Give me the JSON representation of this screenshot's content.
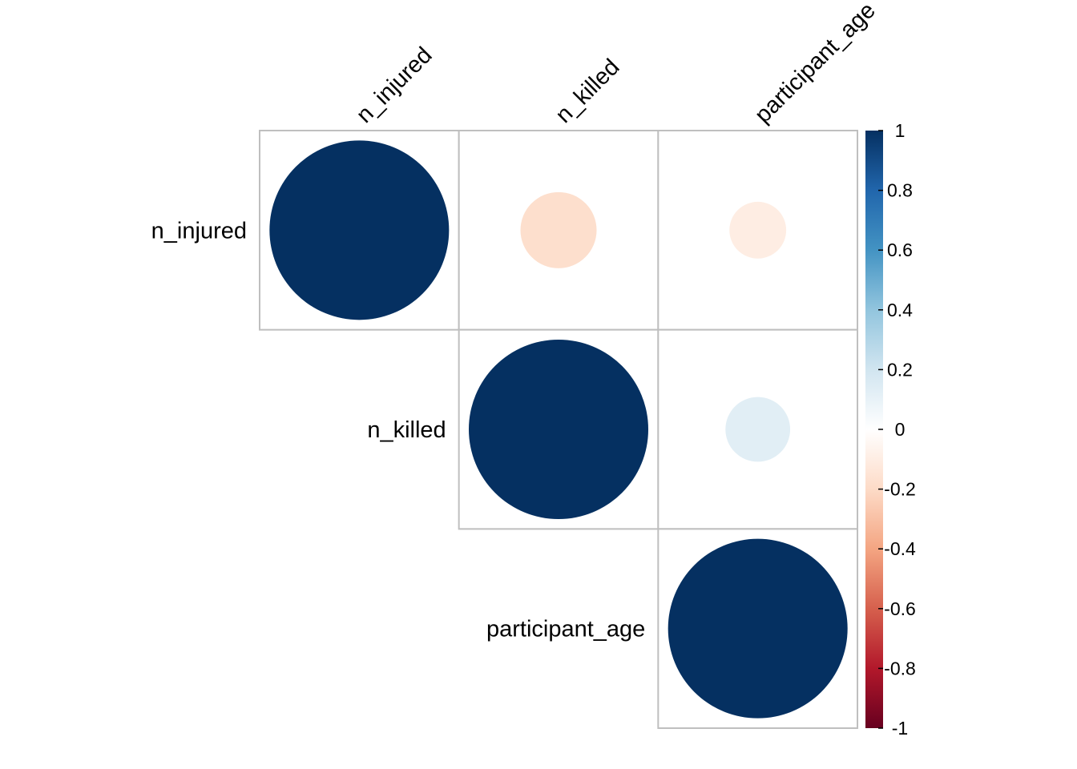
{
  "chart_data": {
    "type": "heatmap",
    "variables": [
      "n_injured",
      "n_killed",
      "participant_age"
    ],
    "matrix": [
      [
        1.0,
        -0.18,
        -0.1
      ],
      [
        -0.18,
        1.0,
        0.13
      ],
      [
        -0.1,
        0.13,
        1.0
      ]
    ],
    "shown": "upper triangle",
    "method": "circle",
    "colorbar": {
      "min": -1,
      "max": 1,
      "ticks": [
        "1",
        "0.8",
        "0.6",
        "0.4",
        "0.2",
        "0",
        "-0.2",
        "-0.4",
        "-0.6",
        "-0.8",
        "-1"
      ],
      "colors": [
        "#67001F",
        "#B2182B",
        "#D6604D",
        "#F4A582",
        "#FDDBC7",
        "#FFFFFF",
        "#D1E5F0",
        "#92C5DE",
        "#4393C3",
        "#2166AC",
        "#053061"
      ]
    }
  }
}
